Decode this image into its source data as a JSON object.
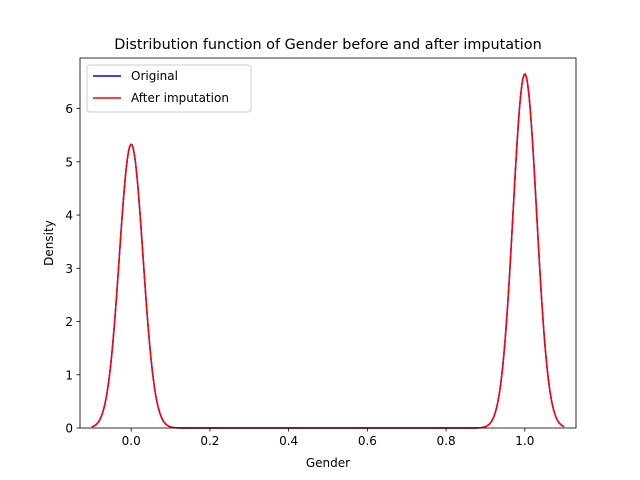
{
  "chart_data": {
    "type": "line",
    "title": "Distribution function of Gender before and after imputation",
    "xlabel": "Gender",
    "ylabel": "Density",
    "xlim": [
      -0.13,
      1.13
    ],
    "ylim": [
      0,
      6.95
    ],
    "xticks": [
      0.0,
      0.2,
      0.4,
      0.6,
      0.8,
      1.0
    ],
    "xtick_labels": [
      "0.0",
      "0.2",
      "0.4",
      "0.6",
      "0.8",
      "1.0"
    ],
    "yticks": [
      0,
      1,
      2,
      3,
      4,
      5,
      6
    ],
    "ytick_labels": [
      "0",
      "1",
      "2",
      "3",
      "4",
      "5",
      "6"
    ],
    "grid": false,
    "legend": {
      "position": "upper-left"
    },
    "x_range": [
      -0.1,
      1.1
    ],
    "series": [
      {
        "name": "Original",
        "color": "#0000ff",
        "kde_peaks": [
          {
            "x": 0.0,
            "density": 5.33
          },
          {
            "x": 1.0,
            "density": 6.65
          }
        ],
        "bandwidth": 0.03
      },
      {
        "name": "After imputation",
        "color": "#ff0000",
        "kde_peaks": [
          {
            "x": 0.0,
            "density": 5.33
          },
          {
            "x": 1.0,
            "density": 6.65
          }
        ],
        "bandwidth": 0.03
      }
    ]
  }
}
